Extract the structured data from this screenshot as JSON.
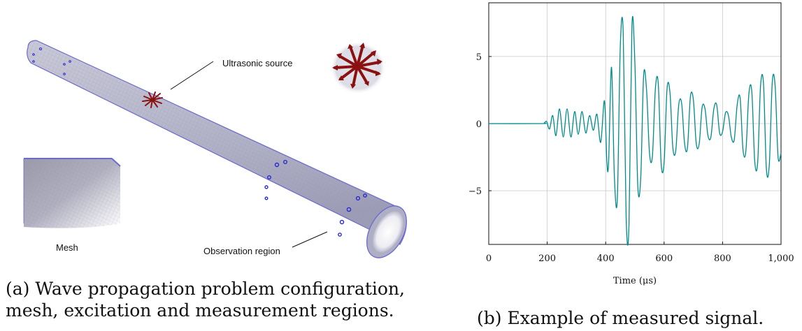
{
  "figure_a": {
    "labels": {
      "ultrasonic_source": "Ultrasonic source",
      "mesh": "Mesh",
      "observation_region": "Observation region"
    },
    "caption_line1": "(a) Wave propagation problem configuration,",
    "caption_line2": "mesh, excitation and measurement regions."
  },
  "figure_b": {
    "caption": "(b) Example of measured signal."
  },
  "colors": {
    "signal": "#008b8b",
    "pipe": "#b8b8cc",
    "pipe_edge": "#6a6ad0",
    "arrows": "#8b1010",
    "sensor": "#2a2ad0"
  },
  "chart_data": {
    "type": "line",
    "title": "",
    "xlabel": "Time (μs)",
    "ylabel": "",
    "xlim": [
      0,
      1000
    ],
    "ylim": [
      -9,
      9
    ],
    "xticks": [
      0,
      200,
      400,
      600,
      800,
      1000
    ],
    "xtick_labels": [
      "0",
      "200",
      "400",
      "600",
      "800",
      "1,000"
    ],
    "yticks": [
      -5,
      0,
      5
    ],
    "ytick_labels": [
      "−5",
      "0",
      "5"
    ],
    "grid": true,
    "series": [
      {
        "x": [
          0,
          180,
          190,
          198,
          208,
          219,
          230,
          242,
          255,
          268,
          281,
          294,
          306,
          319,
          332,
          345,
          358,
          370,
          383,
          396,
          404,
          410,
          420,
          430,
          440,
          450,
          460,
          470,
          480,
          490,
          500,
          510,
          520,
          530,
          540,
          550,
          560,
          570,
          580,
          590,
          600,
          610,
          620,
          630,
          640,
          650,
          660,
          670,
          680,
          690,
          700,
          710,
          720,
          730,
          740,
          750,
          760,
          770,
          780,
          790,
          800,
          810,
          820,
          830,
          840,
          850,
          860,
          870,
          880,
          890,
          900,
          910,
          920,
          930,
          940,
          950,
          960,
          970,
          980,
          990,
          1000
        ],
        "y": [
          0,
          0,
          0.05,
          0.15,
          -0.4,
          0.6,
          -0.9,
          1.1,
          -1.0,
          1.1,
          -1.0,
          0.9,
          -0.8,
          0.9,
          -0.7,
          0.6,
          -0.5,
          0.7,
          -1.4,
          1.7,
          -2.8,
          -2.9,
          4.2,
          -4.0,
          -5.6,
          5.7,
          6.8,
          -7.0,
          -7.5,
          7.3,
          4.5,
          -4.7,
          -4.0,
          3.6,
          2.5,
          -2.2,
          -2.4,
          2.6,
          3.0,
          -3.0,
          -2.9,
          2.6,
          2.3,
          -1.8,
          -2.0,
          1.4,
          1.5,
          -1.5,
          -1.8,
          2.0,
          1.8,
          -1.5,
          -1.5,
          1.2,
          1.1,
          -0.9,
          -1.0,
          1.1,
          1.4,
          -0.7,
          -0.6,
          0.8,
          0.6,
          -1.0,
          -1.2,
          1.4,
          1.9,
          -2.0,
          -2.0,
          2.2,
          2.4,
          -2.8,
          -2.9,
          2.8,
          3.0,
          -3.4,
          -3.0,
          3.1,
          2.8,
          -2.5,
          -2.2
        ]
      }
    ]
  }
}
